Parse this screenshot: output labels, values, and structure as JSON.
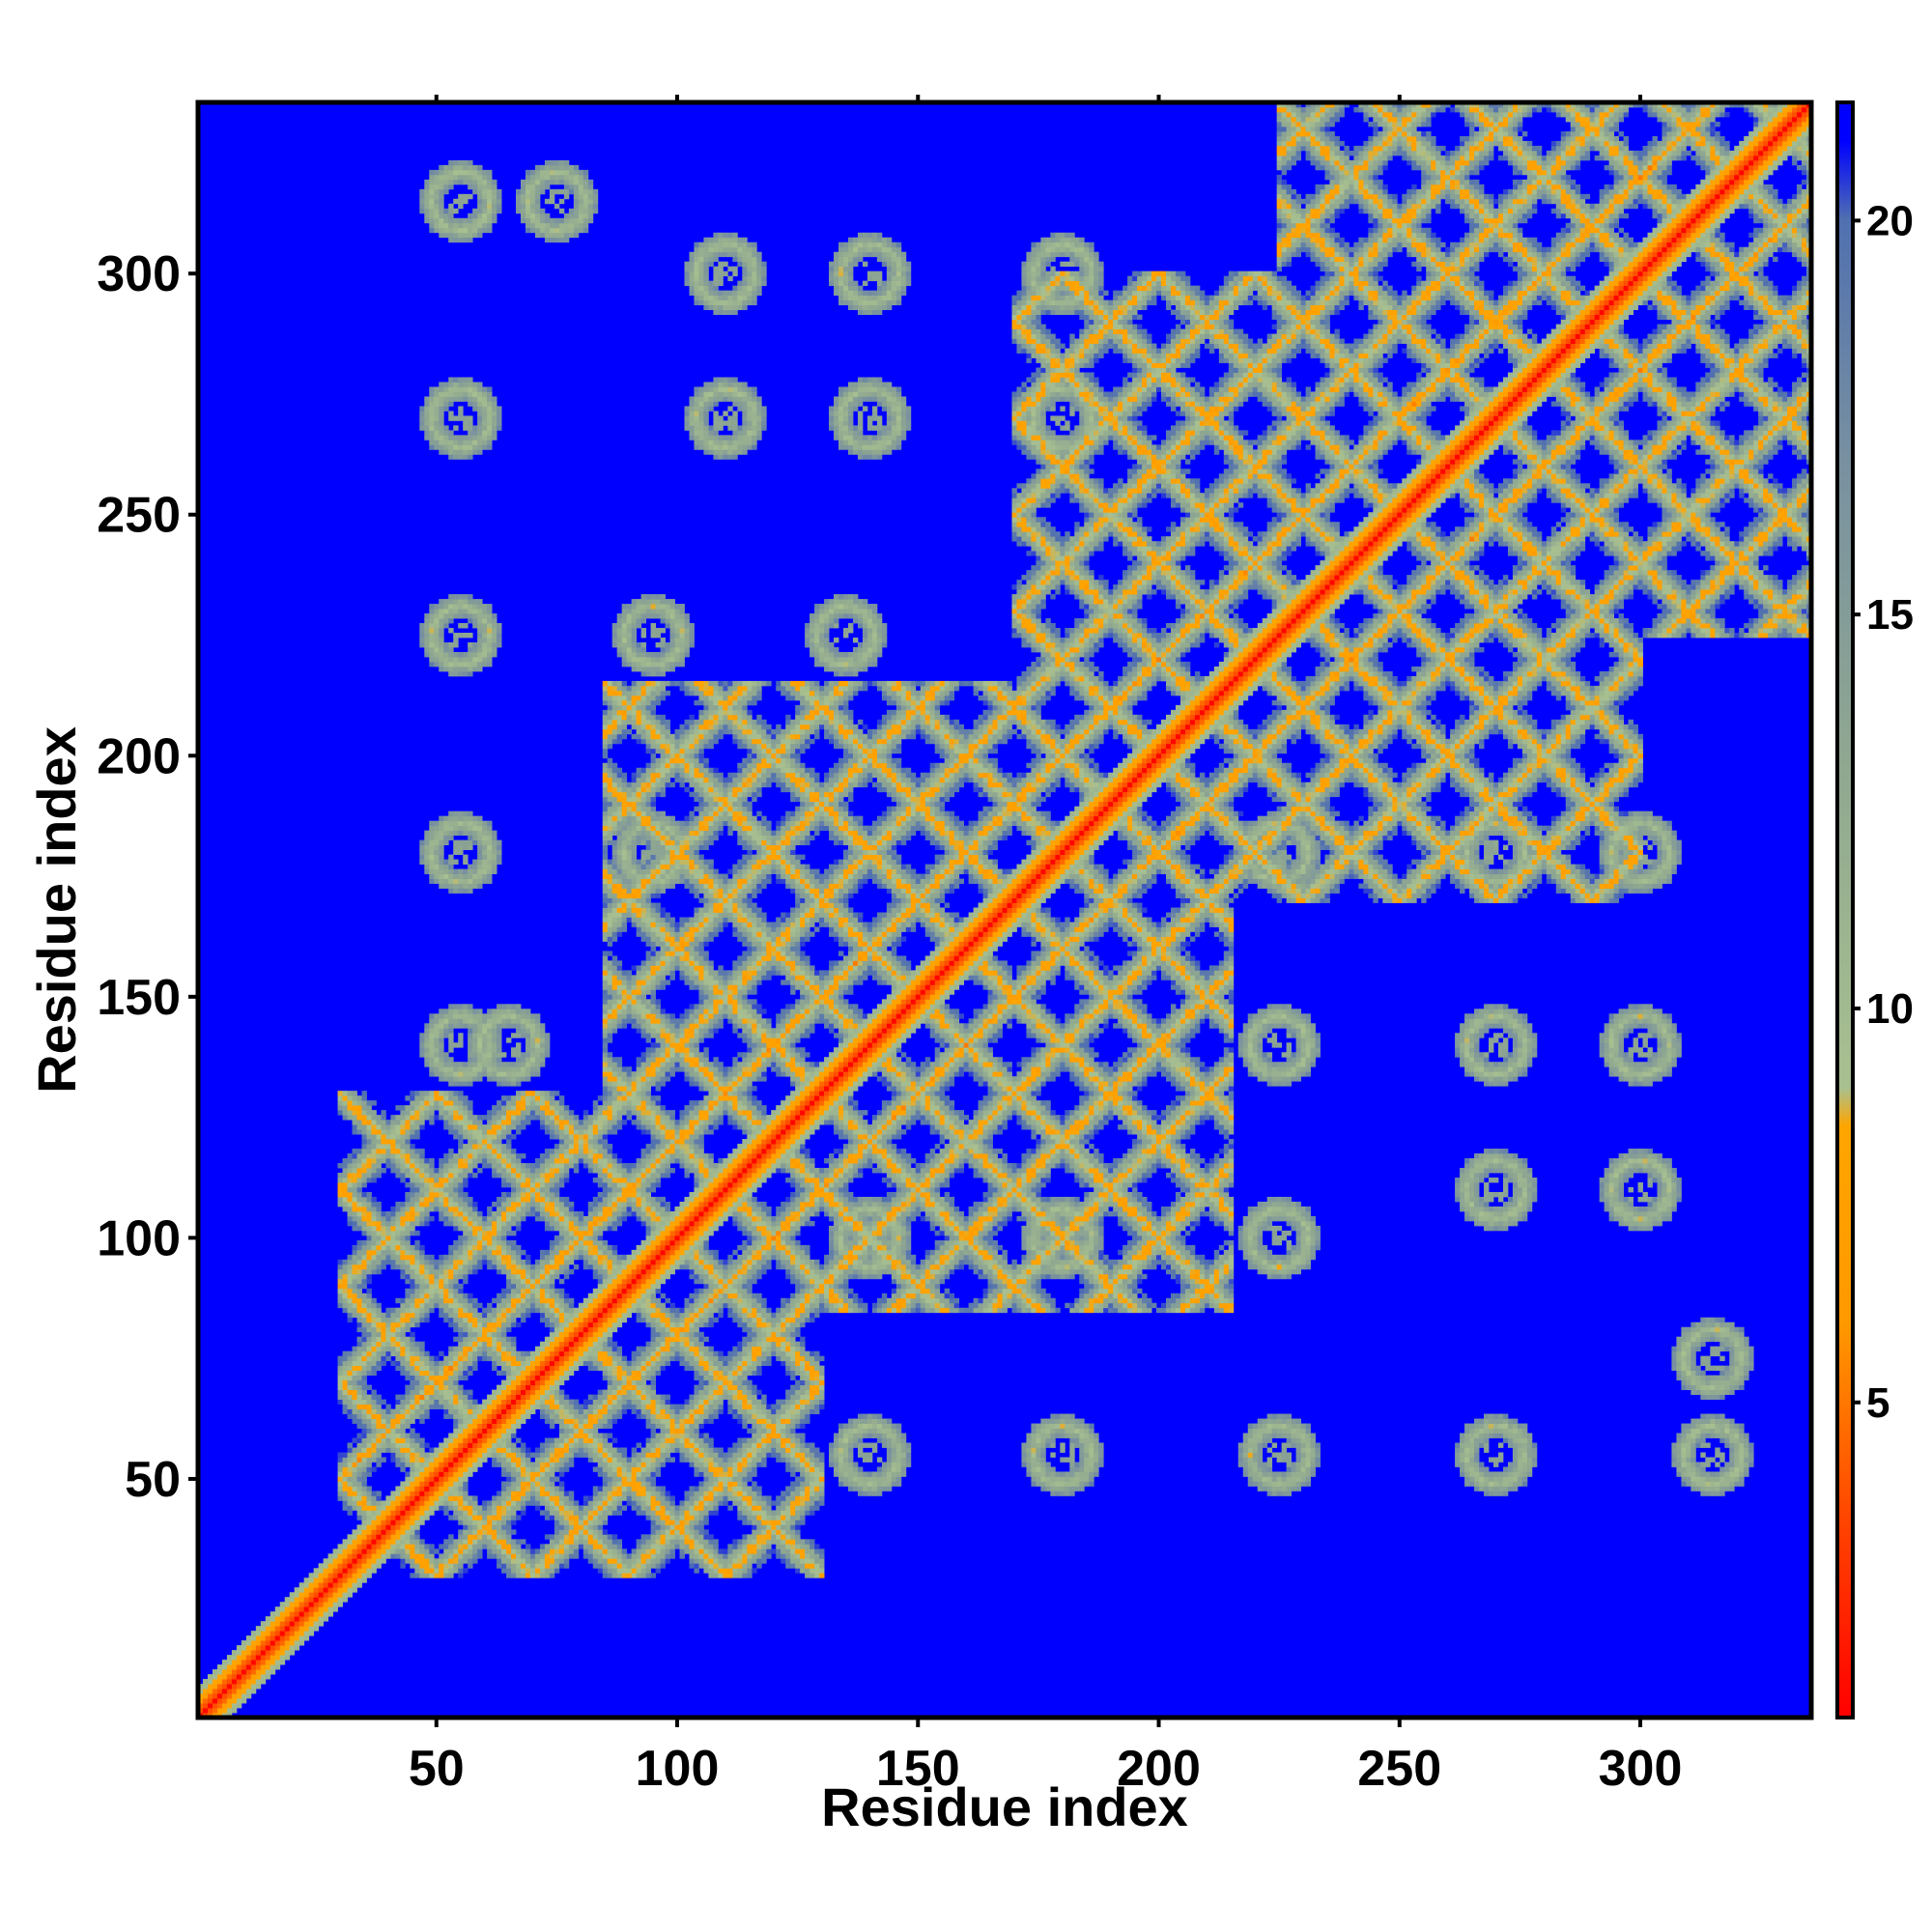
{
  "chart_data": {
    "type": "heatmap",
    "title": "",
    "xlabel": "Residue index",
    "ylabel": "Residue index",
    "n_residues": 335,
    "xlim": [
      1,
      335
    ],
    "ylim": [
      1,
      335
    ],
    "x_ticks": [
      50,
      100,
      150,
      200,
      250,
      300
    ],
    "y_ticks": [
      50,
      100,
      150,
      200,
      250,
      300
    ],
    "colorbar": {
      "range": [
        1,
        21.5
      ],
      "ticks": [
        5,
        10,
        15,
        20
      ],
      "stops": [
        {
          "value": 1,
          "color": "#ff0000"
        },
        {
          "value": 3.5,
          "color": "#ff4400"
        },
        {
          "value": 6,
          "color": "#ff9900"
        },
        {
          "value": 8.5,
          "color": "#ffa500"
        },
        {
          "value": 9,
          "color": "#a8c090"
        },
        {
          "value": 13,
          "color": "#90a890"
        },
        {
          "value": 17,
          "color": "#7890a0"
        },
        {
          "value": 20,
          "color": "#5070b0"
        },
        {
          "value": 21,
          "color": "#0000ff"
        }
      ],
      "background_color": "#0000ff"
    },
    "description_values": {
      "diagonal_distance": 1,
      "near_diagonal_band_width": 6,
      "domain_blocks": [
        {
          "start": 30,
          "end": 130
        },
        {
          "start": 85,
          "end": 215
        },
        {
          "start": 170,
          "end": 300
        },
        {
          "start": 225,
          "end": 335
        }
      ],
      "off_diagonal_contacts": [
        {
          "x": 55,
          "y": 315
        },
        {
          "x": 75,
          "y": 315
        },
        {
          "x": 55,
          "y": 270
        },
        {
          "x": 110,
          "y": 300
        },
        {
          "x": 140,
          "y": 300
        },
        {
          "x": 180,
          "y": 300
        },
        {
          "x": 110,
          "y": 270
        },
        {
          "x": 140,
          "y": 270
        },
        {
          "x": 180,
          "y": 270
        },
        {
          "x": 55,
          "y": 225
        },
        {
          "x": 95,
          "y": 225
        },
        {
          "x": 135,
          "y": 225
        },
        {
          "x": 55,
          "y": 180
        },
        {
          "x": 95,
          "y": 180
        },
        {
          "x": 55,
          "y": 140
        },
        {
          "x": 65,
          "y": 140
        },
        {
          "x": 225,
          "y": 55
        },
        {
          "x": 270,
          "y": 55
        },
        {
          "x": 315,
          "y": 55
        },
        {
          "x": 315,
          "y": 75
        },
        {
          "x": 300,
          "y": 110
        },
        {
          "x": 270,
          "y": 110
        },
        {
          "x": 300,
          "y": 140
        },
        {
          "x": 270,
          "y": 140
        },
        {
          "x": 225,
          "y": 140
        },
        {
          "x": 300,
          "y": 180
        },
        {
          "x": 270,
          "y": 180
        },
        {
          "x": 225,
          "y": 100
        },
        {
          "x": 180,
          "y": 55
        },
        {
          "x": 140,
          "y": 55
        },
        {
          "x": 140,
          "y": 100
        },
        {
          "x": 225,
          "y": 180
        },
        {
          "x": 180,
          "y": 100
        }
      ]
    }
  }
}
